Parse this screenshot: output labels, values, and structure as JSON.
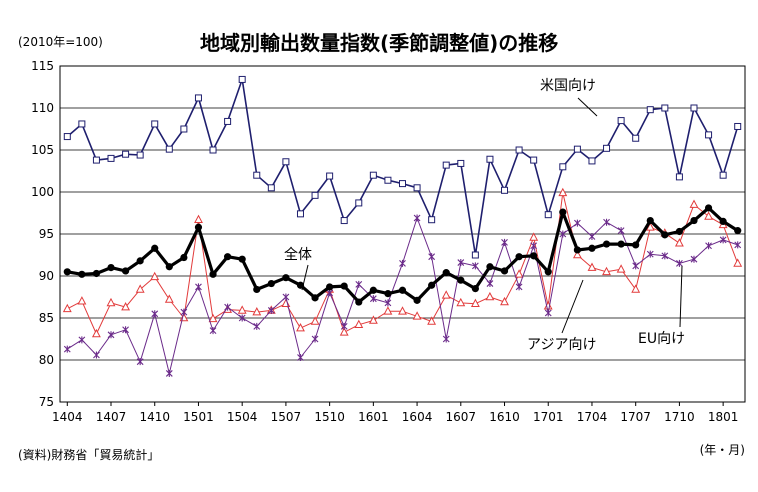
{
  "chart_data": {
    "type": "line",
    "title": "地域別輸出数量指数(季節調整値)の推移",
    "unit_note": "(2010年=100)",
    "source": "(資料)財務省「貿易統計」",
    "xlabel": "(年・月)",
    "ylim": [
      75,
      115
    ],
    "yticks": [
      75,
      80,
      85,
      90,
      95,
      100,
      105,
      110,
      115
    ],
    "x": [
      "1404",
      "1405",
      "1406",
      "1407",
      "1408",
      "1409",
      "1410",
      "1411",
      "1412",
      "1501",
      "1502",
      "1503",
      "1504",
      "1505",
      "1506",
      "1507",
      "1508",
      "1509",
      "1510",
      "1511",
      "1512",
      "1601",
      "1602",
      "1603",
      "1604",
      "1605",
      "1606",
      "1607",
      "1608",
      "1609",
      "1610",
      "1611",
      "1612",
      "1701",
      "1702",
      "1703",
      "1704",
      "1705",
      "1706",
      "1707",
      "1708",
      "1709",
      "1710",
      "1711",
      "1712",
      "1801",
      "1802"
    ],
    "xtick_labels": [
      "1404",
      "1407",
      "1410",
      "1501",
      "1504",
      "1507",
      "1510",
      "1601",
      "1604",
      "1607",
      "1610",
      "1701",
      "1704",
      "1707",
      "1710",
      "1801"
    ],
    "grid": true,
    "series": [
      {
        "name": "米国向け",
        "color": "#1f1f6e",
        "marker": "square",
        "values": [
          106.6,
          108.1,
          103.8,
          104.0,
          104.5,
          104.4,
          108.1,
          105.1,
          107.5,
          111.2,
          105.0,
          108.4,
          113.4,
          102.0,
          100.5,
          103.6,
          97.4,
          99.6,
          101.9,
          96.6,
          98.7,
          102.0,
          101.4,
          101.0,
          100.5,
          96.7,
          103.2,
          103.4,
          92.5,
          103.9,
          100.2,
          105.0,
          103.8,
          97.3,
          103.0,
          105.1,
          103.7,
          105.2,
          108.5,
          106.4,
          109.8,
          110.0,
          101.8,
          110.0,
          106.8,
          102.0,
          107.8
        ]
      },
      {
        "name": "全体",
        "color": "#000000",
        "marker": "circle",
        "values": [
          90.5,
          90.2,
          90.3,
          91.0,
          90.6,
          91.8,
          93.3,
          91.1,
          92.2,
          95.8,
          90.2,
          92.3,
          92.0,
          88.4,
          89.1,
          89.8,
          88.9,
          87.4,
          88.7,
          88.8,
          86.9,
          88.3,
          87.9,
          88.3,
          87.1,
          88.9,
          90.4,
          89.5,
          88.5,
          91.1,
          90.6,
          92.3,
          92.4,
          90.5,
          97.6,
          93.1,
          93.3,
          93.8,
          93.8,
          93.7,
          96.6,
          94.9,
          95.3,
          96.6,
          98.1,
          96.5,
          95.4
        ]
      },
      {
        "name": "アジア向け",
        "color": "#e23b3b",
        "marker": "triangle",
        "values": [
          86.1,
          87.0,
          83.1,
          86.8,
          86.3,
          88.4,
          89.9,
          87.2,
          85.0,
          96.7,
          84.9,
          86.0,
          85.9,
          85.7,
          85.9,
          86.7,
          83.8,
          84.6,
          88.4,
          83.3,
          84.2,
          84.7,
          85.8,
          85.8,
          85.2,
          84.6,
          87.7,
          86.8,
          86.7,
          87.5,
          86.9,
          90.2,
          94.6,
          86.4,
          99.9,
          92.5,
          91.0,
          90.5,
          90.8,
          88.4,
          95.8,
          95.1,
          93.9,
          98.5,
          97.1,
          96.1,
          91.5
        ]
      },
      {
        "name": "EU向け",
        "color": "#6b2b8a",
        "marker": "star",
        "values": [
          81.3,
          82.4,
          80.6,
          83.0,
          83.6,
          79.8,
          85.5,
          78.4,
          85.7,
          88.7,
          83.5,
          86.3,
          85.0,
          84.0,
          85.9,
          87.5,
          80.3,
          82.5,
          88.0,
          84.0,
          89.0,
          87.3,
          86.8,
          91.5,
          96.9,
          92.3,
          82.5,
          91.6,
          91.2,
          89.1,
          94.0,
          88.7,
          93.6,
          85.6,
          95.0,
          96.3,
          94.7,
          96.4,
          95.4,
          91.2,
          92.6,
          92.4,
          91.5,
          92.0,
          93.6,
          94.3,
          93.7
        ]
      }
    ],
    "annotations": [
      {
        "text": "米国向け",
        "series": "米国向け"
      },
      {
        "text": "全体",
        "series": "全体"
      },
      {
        "text": "アジア向け",
        "series": "アジア向け"
      },
      {
        "text": "EU向け",
        "series": "EU向け"
      }
    ]
  }
}
